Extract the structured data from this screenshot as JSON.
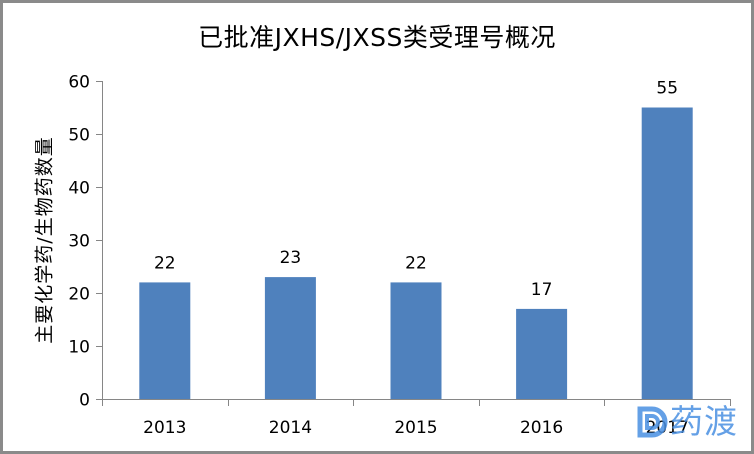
{
  "chart_data": {
    "type": "bar",
    "title": "已批准JXHS/JXSS类受理号概况",
    "xlabel": "",
    "ylabel": "主要化学药/生物药数量",
    "categories": [
      "2013",
      "2014",
      "2015",
      "2016",
      "2017"
    ],
    "series": [
      {
        "name": "数量",
        "values": [
          22,
          23,
          22,
          17,
          55
        ]
      }
    ],
    "ylim": [
      0,
      60
    ],
    "yticks": [
      0,
      10,
      20,
      30,
      40,
      50,
      60
    ],
    "data_labels": true,
    "grid": false,
    "legend": "none",
    "bar_color": "#4f81bd"
  },
  "watermark": {
    "text": "药渡",
    "icon": "yaodu-logo-icon",
    "color": "#4a90e2"
  }
}
